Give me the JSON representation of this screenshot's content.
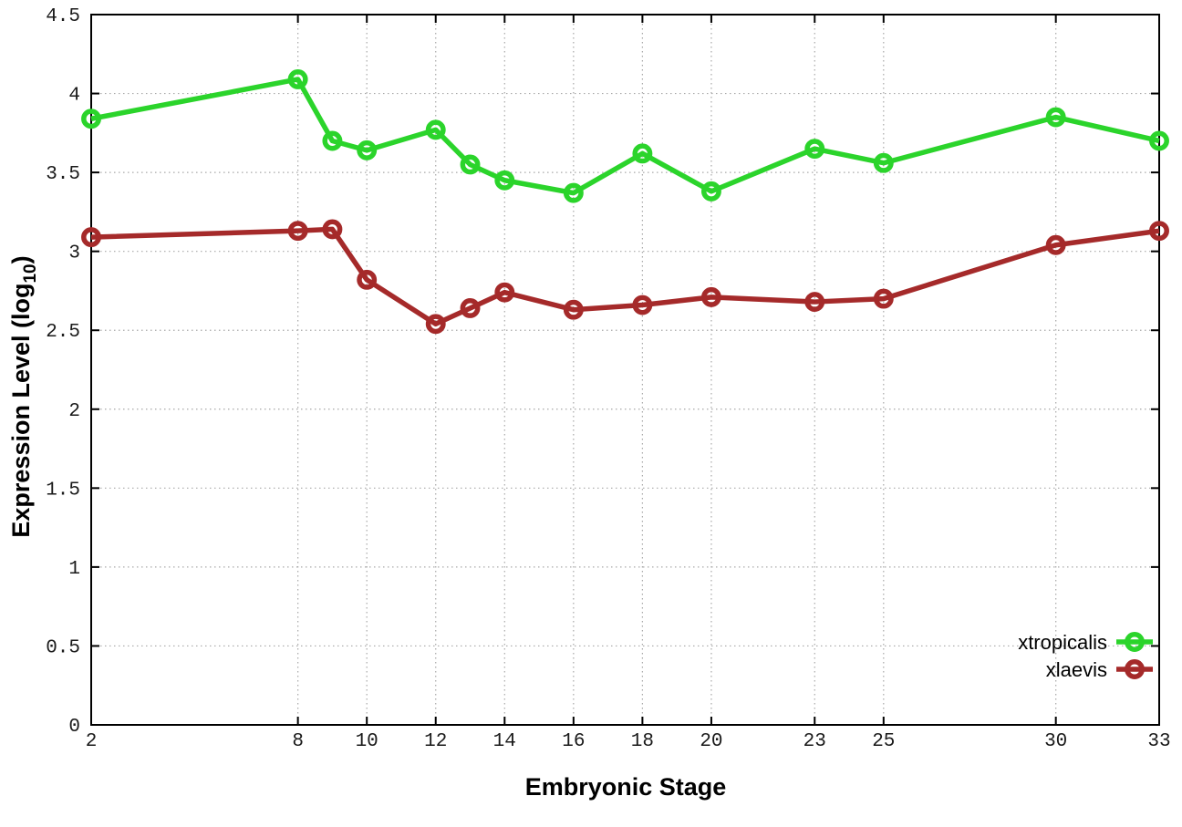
{
  "figure": {
    "xlabel": "Embryonic Stage",
    "ylabel_prefix": "Expression Level (log",
    "ylabel_sub": "10",
    "ylabel_suffix": ")"
  },
  "chart_data": {
    "type": "line",
    "title": "",
    "xlabel": "Embryonic Stage",
    "ylabel": "Expression Level (log10)",
    "x": [
      2,
      8,
      9,
      10,
      12,
      13,
      14,
      16,
      18,
      20,
      23,
      25,
      30,
      33
    ],
    "series": [
      {
        "name": "xtropicalis",
        "color": "#2bd42b",
        "values": [
          3.84,
          4.09,
          3.7,
          3.64,
          3.77,
          3.55,
          3.45,
          3.37,
          3.62,
          3.38,
          3.65,
          3.56,
          3.85,
          3.7
        ]
      },
      {
        "name": "xlaevis",
        "color": "#a52a2a",
        "values": [
          3.09,
          3.13,
          3.14,
          2.82,
          2.54,
          2.64,
          2.74,
          2.63,
          2.66,
          2.71,
          2.68,
          2.7,
          3.04,
          3.13
        ]
      }
    ],
    "xlim": [
      2,
      33
    ],
    "ylim": [
      0,
      4.5
    ],
    "xticks": [
      2,
      8,
      10,
      12,
      14,
      16,
      18,
      20,
      23,
      25,
      30,
      33
    ],
    "ytick_labels": [
      "0",
      "0.5",
      "1",
      "1.5",
      "2",
      "2.5",
      "3",
      "3.5",
      "4",
      "4.5"
    ],
    "grid": true,
    "legend_position": "bottom-right",
    "grid_color": "#a8a8a8",
    "border_color": "#000000"
  }
}
